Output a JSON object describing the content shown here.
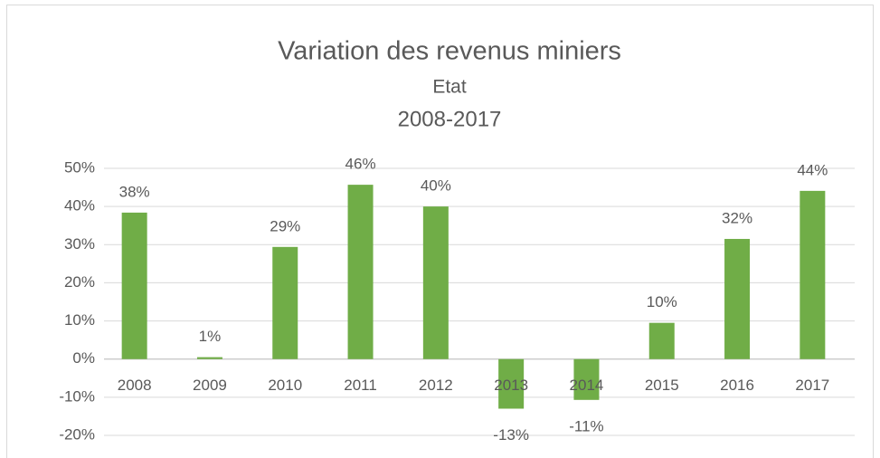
{
  "chart_data": {
    "type": "bar",
    "title": "Variation des revenus miniers",
    "subtitle": [
      "Etat",
      "2008-2017"
    ],
    "categories": [
      "2008",
      "2009",
      "2010",
      "2011",
      "2012",
      "2013",
      "2014",
      "2015",
      "2016",
      "2017"
    ],
    "values": [
      38.4,
      0.5,
      29.4,
      45.7,
      40,
      -13,
      -10.7,
      9.5,
      31.5,
      44.1
    ],
    "value_labels": [
      "38%",
      "1%",
      "29%",
      "46%",
      "40%",
      "-13%",
      "-11%",
      "10%",
      "32%",
      "44%"
    ],
    "color": "#70ad47",
    "ylim": [
      -20,
      50
    ],
    "yticks": [
      {
        "value": -20,
        "label": "-20%"
      },
      {
        "value": -10,
        "label": "-10%"
      },
      {
        "value": 0,
        "label": "0%"
      },
      {
        "value": 10,
        "label": "10%"
      },
      {
        "value": 20,
        "label": "20%"
      },
      {
        "value": 30,
        "label": "30%"
      },
      {
        "value": 40,
        "label": "40%"
      },
      {
        "value": 50,
        "label": "50%"
      }
    ],
    "grid": true
  }
}
